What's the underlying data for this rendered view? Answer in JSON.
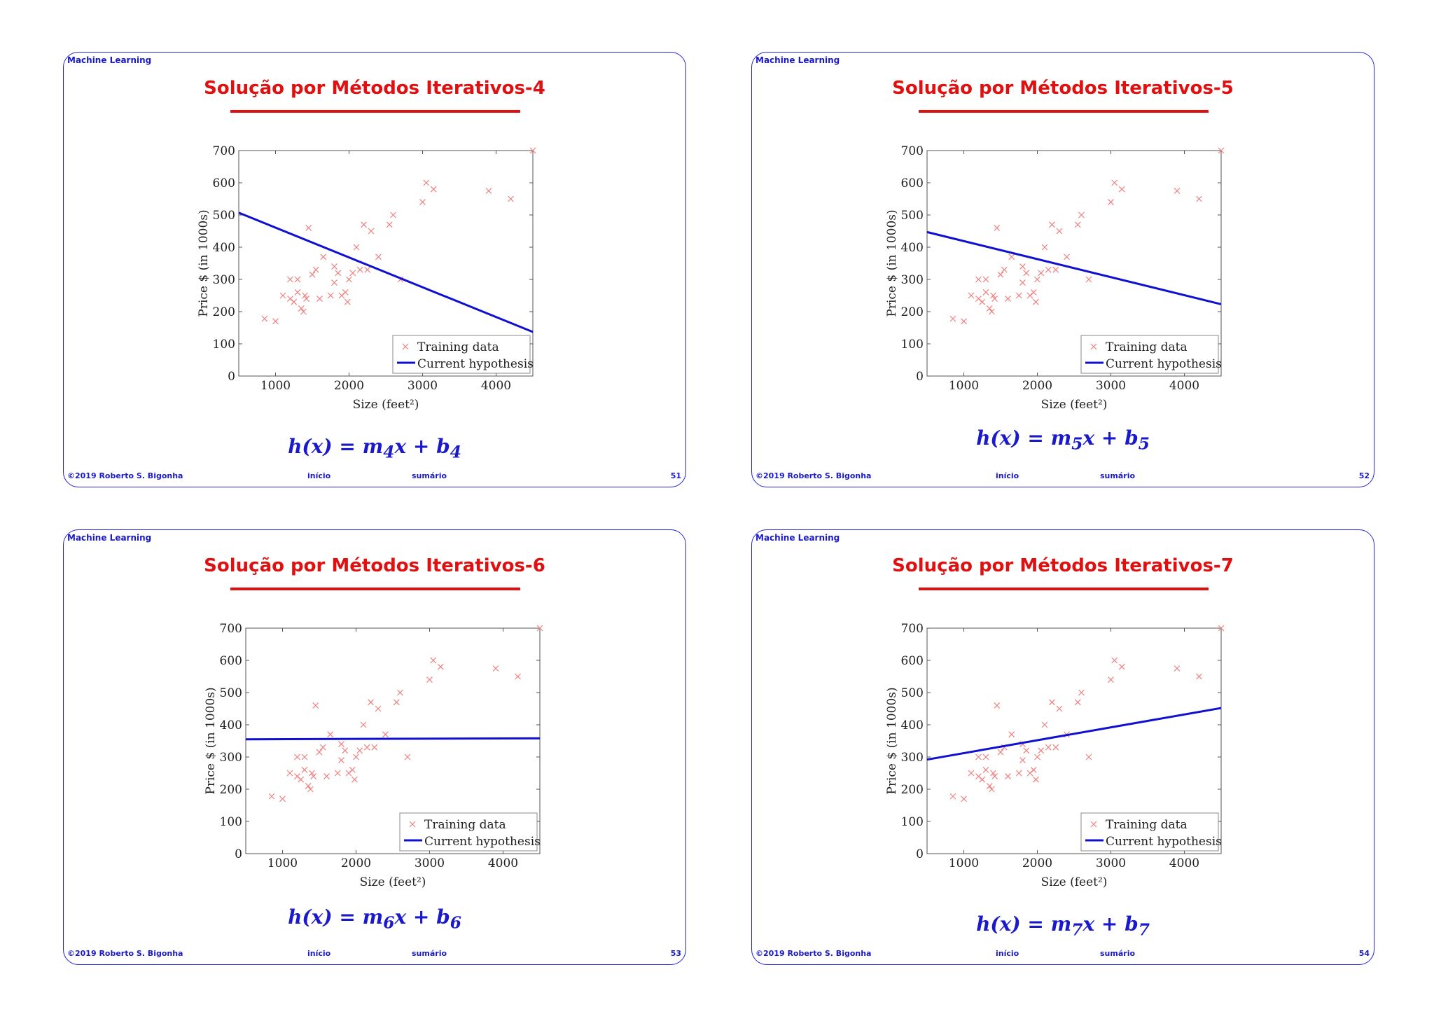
{
  "colors": {
    "accent_blue": "#1a1acc",
    "title_red": "#e01010",
    "hypothesis_line": "#1010d0",
    "training_marker": "#f08080"
  },
  "slides": [
    {
      "header": "Machine Learning",
      "title": "Solução por Métodos Iterativos-4",
      "formula": {
        "prefix": "h(x) = m",
        "m_sub": "4",
        "mid": "x + b",
        "b_sub": "4"
      },
      "footer": {
        "copyright": "©2019 Roberto S. Bigonha",
        "inicio": "início",
        "sumario": "sumário",
        "page": "51"
      }
    },
    {
      "header": "Machine Learning",
      "title": "Solução por Métodos Iterativos-5",
      "formula": {
        "prefix": "h(x) = m",
        "m_sub": "5",
        "mid": "x + b",
        "b_sub": "5"
      },
      "footer": {
        "copyright": "©2019 Roberto S. Bigonha",
        "inicio": "início",
        "sumario": "sumário",
        "page": "52"
      }
    },
    {
      "header": "Machine Learning",
      "title": "Solução por Métodos Iterativos-6",
      "formula": {
        "prefix": "h(x) = m",
        "m_sub": "6",
        "mid": "x + b",
        "b_sub": "6"
      },
      "footer": {
        "copyright": "©2019 Roberto S. Bigonha",
        "inicio": "início",
        "sumario": "sumário",
        "page": "53"
      }
    },
    {
      "header": "Machine Learning",
      "title": "Solução por Métodos Iterativos-7",
      "formula": {
        "prefix": "h(x) = m",
        "m_sub": "7",
        "mid": "x + b",
        "b_sub": "7"
      },
      "footer": {
        "copyright": "©2019 Roberto S. Bigonha",
        "inicio": "início",
        "sumario": "sumário",
        "page": "54"
      }
    }
  ],
  "chart_data": [
    {
      "type": "scatter",
      "title": "",
      "xlabel": "Size (feet²)",
      "ylabel": "Price $ (in 1000s)",
      "xlim": [
        500,
        4500
      ],
      "ylim": [
        0,
        700
      ],
      "xticks": [
        1000,
        2000,
        3000,
        4000
      ],
      "yticks": [
        0,
        100,
        200,
        300,
        400,
        500,
        600,
        700
      ],
      "legend": {
        "position": "bottom-right",
        "entries": [
          "Training data",
          "Current hypothesis"
        ]
      },
      "series": [
        {
          "name": "Training data",
          "points": [
            [
              852,
              178
            ],
            [
              1000,
              170
            ],
            [
              1100,
              250
            ],
            [
              1200,
              300
            ],
            [
              1200,
              240
            ],
            [
              1250,
              230
            ],
            [
              1300,
              300
            ],
            [
              1300,
              260
            ],
            [
              1350,
              210
            ],
            [
              1380,
              200
            ],
            [
              1400,
              250
            ],
            [
              1420,
              240
            ],
            [
              1450,
              460
            ],
            [
              1500,
              315
            ],
            [
              1550,
              330
            ],
            [
              1600,
              240
            ],
            [
              1650,
              370
            ],
            [
              1750,
              250
            ],
            [
              1800,
              290
            ],
            [
              1800,
              340
            ],
            [
              1850,
              320
            ],
            [
              1900,
              250
            ],
            [
              1950,
              260
            ],
            [
              1980,
              230
            ],
            [
              2000,
              300
            ],
            [
              2050,
              320
            ],
            [
              2100,
              400
            ],
            [
              2150,
              330
            ],
            [
              2200,
              470
            ],
            [
              2250,
              330
            ],
            [
              2300,
              450
            ],
            [
              2400,
              370
            ],
            [
              2550,
              470
            ],
            [
              2600,
              500
            ],
            [
              2700,
              300
            ],
            [
              3000,
              540
            ],
            [
              3050,
              600
            ],
            [
              3150,
              580
            ],
            [
              3900,
              575
            ],
            [
              4200,
              550
            ],
            [
              4500,
              700
            ]
          ]
        },
        {
          "name": "Current hypothesis",
          "line": [
            [
              500,
              507
            ],
            [
              4500,
              137
            ]
          ]
        }
      ]
    },
    {
      "type": "scatter",
      "title": "",
      "xlabel": "Size (feet²)",
      "ylabel": "Price $ (in 1000s)",
      "xlim": [
        500,
        4500
      ],
      "ylim": [
        0,
        700
      ],
      "xticks": [
        1000,
        2000,
        3000,
        4000
      ],
      "yticks": [
        0,
        100,
        200,
        300,
        400,
        500,
        600,
        700
      ],
      "legend": {
        "position": "bottom-right",
        "entries": [
          "Training data",
          "Current hypothesis"
        ]
      },
      "series": [
        {
          "name": "Training data",
          "points": [
            [
              852,
              178
            ],
            [
              1000,
              170
            ],
            [
              1100,
              250
            ],
            [
              1200,
              300
            ],
            [
              1200,
              240
            ],
            [
              1250,
              230
            ],
            [
              1300,
              300
            ],
            [
              1300,
              260
            ],
            [
              1350,
              210
            ],
            [
              1380,
              200
            ],
            [
              1400,
              250
            ],
            [
              1420,
              240
            ],
            [
              1450,
              460
            ],
            [
              1500,
              315
            ],
            [
              1550,
              330
            ],
            [
              1600,
              240
            ],
            [
              1650,
              370
            ],
            [
              1750,
              250
            ],
            [
              1800,
              290
            ],
            [
              1800,
              340
            ],
            [
              1850,
              320
            ],
            [
              1900,
              250
            ],
            [
              1950,
              260
            ],
            [
              1980,
              230
            ],
            [
              2000,
              300
            ],
            [
              2050,
              320
            ],
            [
              2100,
              400
            ],
            [
              2150,
              330
            ],
            [
              2200,
              470
            ],
            [
              2250,
              330
            ],
            [
              2300,
              450
            ],
            [
              2400,
              370
            ],
            [
              2550,
              470
            ],
            [
              2600,
              500
            ],
            [
              2700,
              300
            ],
            [
              3000,
              540
            ],
            [
              3050,
              600
            ],
            [
              3150,
              580
            ],
            [
              3900,
              575
            ],
            [
              4200,
              550
            ],
            [
              4500,
              700
            ]
          ]
        },
        {
          "name": "Current hypothesis",
          "line": [
            [
              500,
              447
            ],
            [
              4500,
              223
            ]
          ]
        }
      ]
    },
    {
      "type": "scatter",
      "title": "",
      "xlabel": "Size (feet²)",
      "ylabel": "Price $ (in 1000s)",
      "xlim": [
        500,
        4500
      ],
      "ylim": [
        0,
        700
      ],
      "xticks": [
        1000,
        2000,
        3000,
        4000
      ],
      "yticks": [
        0,
        100,
        200,
        300,
        400,
        500,
        600,
        700
      ],
      "legend": {
        "position": "bottom-right",
        "entries": [
          "Training data",
          "Current hypothesis"
        ]
      },
      "series": [
        {
          "name": "Training data",
          "points": [
            [
              852,
              178
            ],
            [
              1000,
              170
            ],
            [
              1100,
              250
            ],
            [
              1200,
              300
            ],
            [
              1200,
              240
            ],
            [
              1250,
              230
            ],
            [
              1300,
              300
            ],
            [
              1300,
              260
            ],
            [
              1350,
              210
            ],
            [
              1380,
              200
            ],
            [
              1400,
              250
            ],
            [
              1420,
              240
            ],
            [
              1450,
              460
            ],
            [
              1500,
              315
            ],
            [
              1550,
              330
            ],
            [
              1600,
              240
            ],
            [
              1650,
              370
            ],
            [
              1750,
              250
            ],
            [
              1800,
              290
            ],
            [
              1800,
              340
            ],
            [
              1850,
              320
            ],
            [
              1900,
              250
            ],
            [
              1950,
              260
            ],
            [
              1980,
              230
            ],
            [
              2000,
              300
            ],
            [
              2050,
              320
            ],
            [
              2100,
              400
            ],
            [
              2150,
              330
            ],
            [
              2200,
              470
            ],
            [
              2250,
              330
            ],
            [
              2300,
              450
            ],
            [
              2400,
              370
            ],
            [
              2550,
              470
            ],
            [
              2600,
              500
            ],
            [
              2700,
              300
            ],
            [
              3000,
              540
            ],
            [
              3050,
              600
            ],
            [
              3150,
              580
            ],
            [
              3900,
              575
            ],
            [
              4200,
              550
            ],
            [
              4500,
              700
            ]
          ]
        },
        {
          "name": "Current hypothesis",
          "line": [
            [
              500,
              355
            ],
            [
              4500,
              358
            ]
          ]
        }
      ]
    },
    {
      "type": "scatter",
      "title": "",
      "xlabel": "Size (feet²)",
      "ylabel": "Price $ (in 1000s)",
      "xlim": [
        500,
        4500
      ],
      "ylim": [
        0,
        700
      ],
      "xticks": [
        1000,
        2000,
        3000,
        4000
      ],
      "yticks": [
        0,
        100,
        200,
        300,
        400,
        500,
        600,
        700
      ],
      "legend": {
        "position": "bottom-right",
        "entries": [
          "Training data",
          "Current hypothesis"
        ]
      },
      "series": [
        {
          "name": "Training data",
          "points": [
            [
              852,
              178
            ],
            [
              1000,
              170
            ],
            [
              1100,
              250
            ],
            [
              1200,
              300
            ],
            [
              1200,
              240
            ],
            [
              1250,
              230
            ],
            [
              1300,
              300
            ],
            [
              1300,
              260
            ],
            [
              1350,
              210
            ],
            [
              1380,
              200
            ],
            [
              1400,
              250
            ],
            [
              1420,
              240
            ],
            [
              1450,
              460
            ],
            [
              1500,
              315
            ],
            [
              1550,
              330
            ],
            [
              1600,
              240
            ],
            [
              1650,
              370
            ],
            [
              1750,
              250
            ],
            [
              1800,
              290
            ],
            [
              1800,
              340
            ],
            [
              1850,
              320
            ],
            [
              1900,
              250
            ],
            [
              1950,
              260
            ],
            [
              1980,
              230
            ],
            [
              2000,
              300
            ],
            [
              2050,
              320
            ],
            [
              2100,
              400
            ],
            [
              2150,
              330
            ],
            [
              2200,
              470
            ],
            [
              2250,
              330
            ],
            [
              2300,
              450
            ],
            [
              2400,
              370
            ],
            [
              2550,
              470
            ],
            [
              2600,
              500
            ],
            [
              2700,
              300
            ],
            [
              3000,
              540
            ],
            [
              3050,
              600
            ],
            [
              3150,
              580
            ],
            [
              3900,
              575
            ],
            [
              4200,
              550
            ],
            [
              4500,
              700
            ]
          ]
        },
        {
          "name": "Current hypothesis",
          "line": [
            [
              500,
              292
            ],
            [
              4500,
              452
            ]
          ]
        }
      ]
    }
  ]
}
